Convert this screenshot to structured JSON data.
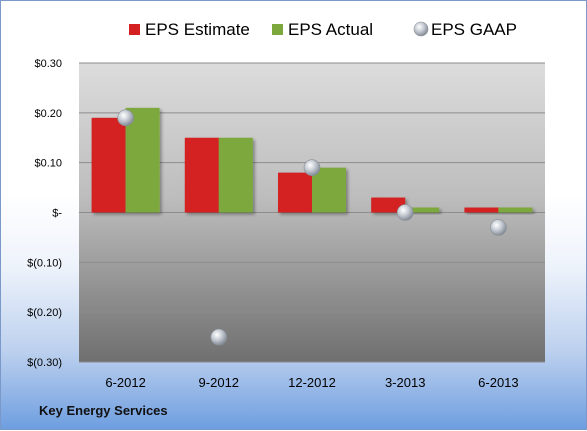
{
  "company_label": "Key Energy Services",
  "colors": {
    "estimate": "#d42020",
    "actual": "#7ca83e",
    "gaap": "#b9bfc8"
  },
  "chart_data": {
    "type": "bar",
    "categories": [
      "6-2012",
      "9-2012",
      "12-2012",
      "3-2013",
      "6-2013"
    ],
    "series": [
      {
        "name": "EPS Estimate",
        "kind": "bar",
        "values": [
          0.19,
          0.15,
          0.08,
          0.03,
          0.01
        ]
      },
      {
        "name": "EPS Actual",
        "kind": "bar",
        "values": [
          0.21,
          0.15,
          0.09,
          0.01,
          0.01
        ]
      },
      {
        "name": "EPS GAAP",
        "kind": "marker",
        "values": [
          0.19,
          -0.25,
          0.09,
          0.0,
          -0.03
        ]
      }
    ],
    "ylim": [
      -0.3,
      0.3
    ],
    "yticks": [
      0.3,
      0.2,
      0.1,
      0,
      -0.1,
      -0.2,
      -0.3
    ],
    "ytick_labels": [
      "$0.30",
      "$0.20",
      "$0.10",
      "$-",
      "$(0.10)",
      "$(0.20)",
      "$(0.30)"
    ],
    "grid": true,
    "legend": "top"
  }
}
